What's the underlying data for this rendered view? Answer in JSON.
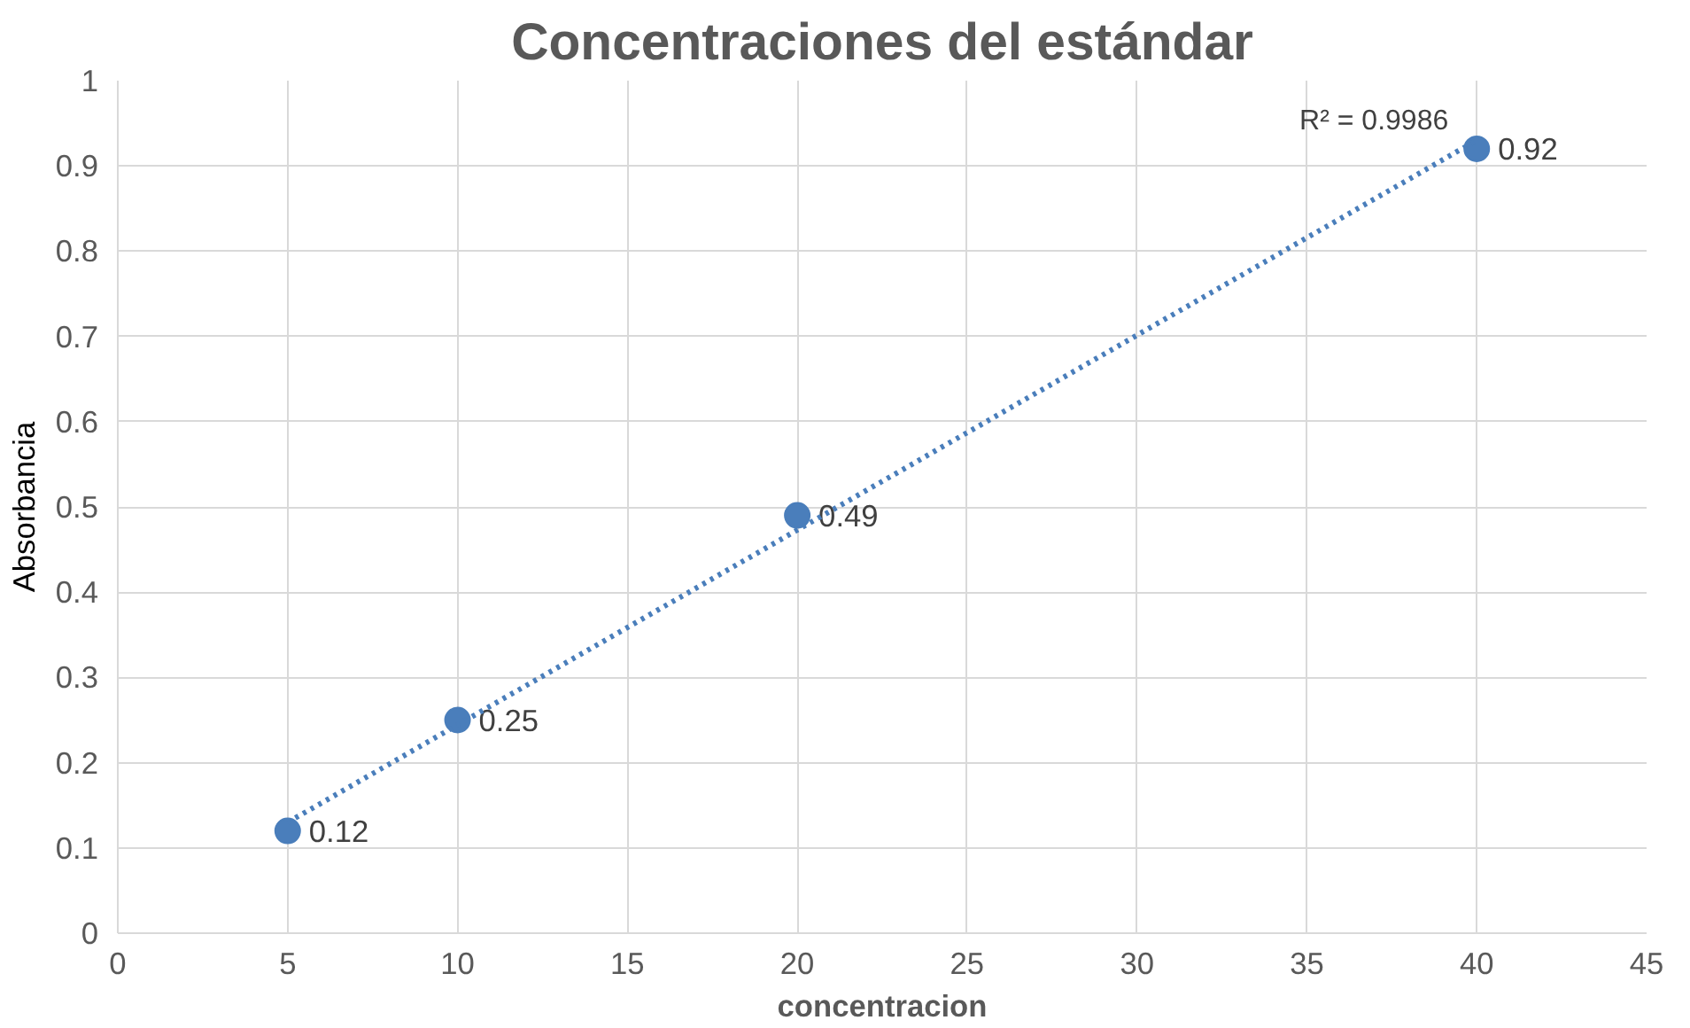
{
  "chart_data": {
    "type": "scatter",
    "title": "Concentraciones del estándar",
    "xlabel": "concentracion",
    "ylabel": "Absorbancia",
    "xlim": [
      0,
      45
    ],
    "xticks": [
      0,
      5,
      10,
      15,
      20,
      25,
      30,
      35,
      40,
      45
    ],
    "ylim": [
      0,
      1
    ],
    "yticks": [
      0,
      0.1,
      0.2,
      0.3,
      0.4,
      0.5,
      0.6,
      0.7,
      0.8,
      0.9,
      1
    ],
    "grid": true,
    "marker": "circle",
    "series": [
      {
        "x": [
          5,
          10,
          20,
          40
        ],
        "values": [
          0.12,
          0.25,
          0.49,
          0.92
        ],
        "color": "#4a7ebb",
        "data_labels": true
      },
      {
        "type": "line",
        "x": [
          5,
          40
        ],
        "values": [
          0.13,
          0.93
        ],
        "color": "#4a7ebb",
        "line_style": "dotted",
        "marker": "none"
      }
    ],
    "annotations": [
      {
        "text": "R² = 0.9986",
        "x": 40,
        "y": 0.93
      }
    ]
  }
}
